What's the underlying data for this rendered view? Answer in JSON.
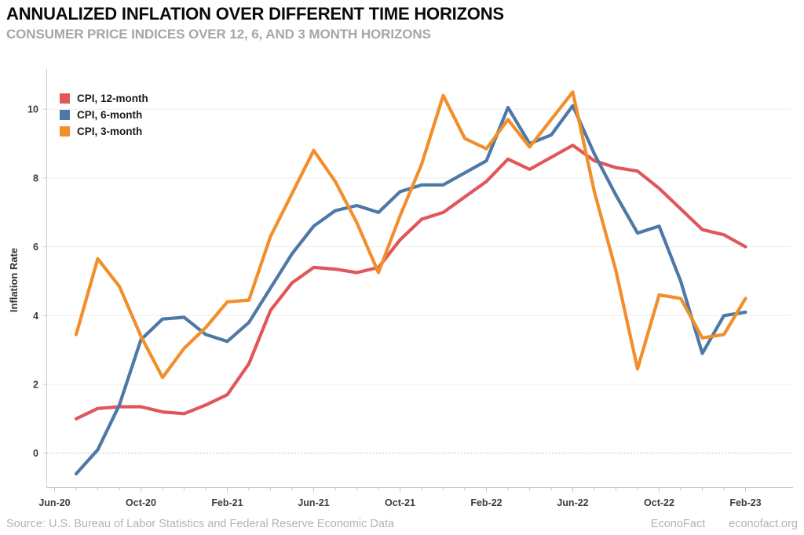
{
  "header": {
    "title": "ANNUALIZED INFLATION OVER DIFFERENT TIME HORIZONS",
    "subtitle": "CONSUMER PRICE INDICES OVER 12, 6, AND 3 MONTH HORIZONS"
  },
  "footer": {
    "source": "Source: U.S. Bureau of Labor Statistics and Federal Reserve Economic Data",
    "brand": "EconoFact",
    "site": "econofact.org"
  },
  "chart_data": {
    "type": "line",
    "x": [
      "Jul-20",
      "Aug-20",
      "Sep-20",
      "Oct-20",
      "Nov-20",
      "Dec-20",
      "Jan-21",
      "Feb-21",
      "Mar-21",
      "Apr-21",
      "May-21",
      "Jun-21",
      "Jul-21",
      "Aug-21",
      "Sep-21",
      "Oct-21",
      "Nov-21",
      "Dec-21",
      "Jan-22",
      "Feb-22",
      "Mar-22",
      "Apr-22",
      "May-22",
      "Jun-22",
      "Jul-22",
      "Aug-22",
      "Sep-22",
      "Oct-22",
      "Nov-22",
      "Dec-22",
      "Jan-23",
      "Feb-23"
    ],
    "series": [
      {
        "name": "CPI, 12-month",
        "color": "#e15759",
        "values": [
          1.0,
          1.3,
          1.35,
          1.35,
          1.2,
          1.15,
          1.4,
          1.7,
          2.6,
          4.15,
          4.95,
          5.4,
          5.35,
          5.25,
          5.4,
          6.2,
          6.8,
          7.0,
          7.45,
          7.9,
          8.55,
          8.25,
          8.6,
          8.95,
          8.5,
          8.3,
          8.2,
          7.7,
          7.1,
          6.5,
          6.35,
          6.0
        ]
      },
      {
        "name": "CPI, 6-month",
        "color": "#4e79a7",
        "values": [
          -0.6,
          0.1,
          1.4,
          3.3,
          3.9,
          3.95,
          3.45,
          3.25,
          3.8,
          4.8,
          5.8,
          6.6,
          7.05,
          7.2,
          7.0,
          7.6,
          7.8,
          7.8,
          8.15,
          8.5,
          10.05,
          9.0,
          9.25,
          10.1,
          8.7,
          7.5,
          6.4,
          6.6,
          5.0,
          2.9,
          4.0,
          4.1
        ]
      },
      {
        "name": "CPI, 3-month",
        "color": "#f28e2b",
        "values": [
          3.45,
          5.65,
          4.85,
          3.4,
          2.2,
          3.05,
          3.65,
          4.4,
          4.45,
          6.3,
          7.55,
          8.8,
          7.9,
          6.7,
          5.25,
          6.9,
          8.4,
          10.4,
          9.15,
          8.85,
          9.7,
          8.9,
          9.7,
          10.5,
          7.6,
          5.3,
          2.45,
          4.6,
          4.5,
          3.35,
          3.45,
          4.5
        ]
      }
    ],
    "title": "ANNUALIZED INFLATION OVER DIFFERENT TIME HORIZONS",
    "xlabel": "",
    "ylabel": "Inflation Rate",
    "yticks": [
      0,
      2,
      4,
      6,
      8,
      10
    ],
    "ylim": [
      -1.1,
      11.1
    ],
    "xtick_labels": [
      "Jun-20",
      "Oct-20",
      "Feb-21",
      "Jun-21",
      "Oct-21",
      "Feb-22",
      "Jun-22",
      "Oct-22",
      "Feb-23"
    ],
    "xtick_every_n_months": 4,
    "grid": "horizontal every 2 units, zero line dotted",
    "legend_position": "top-left"
  }
}
